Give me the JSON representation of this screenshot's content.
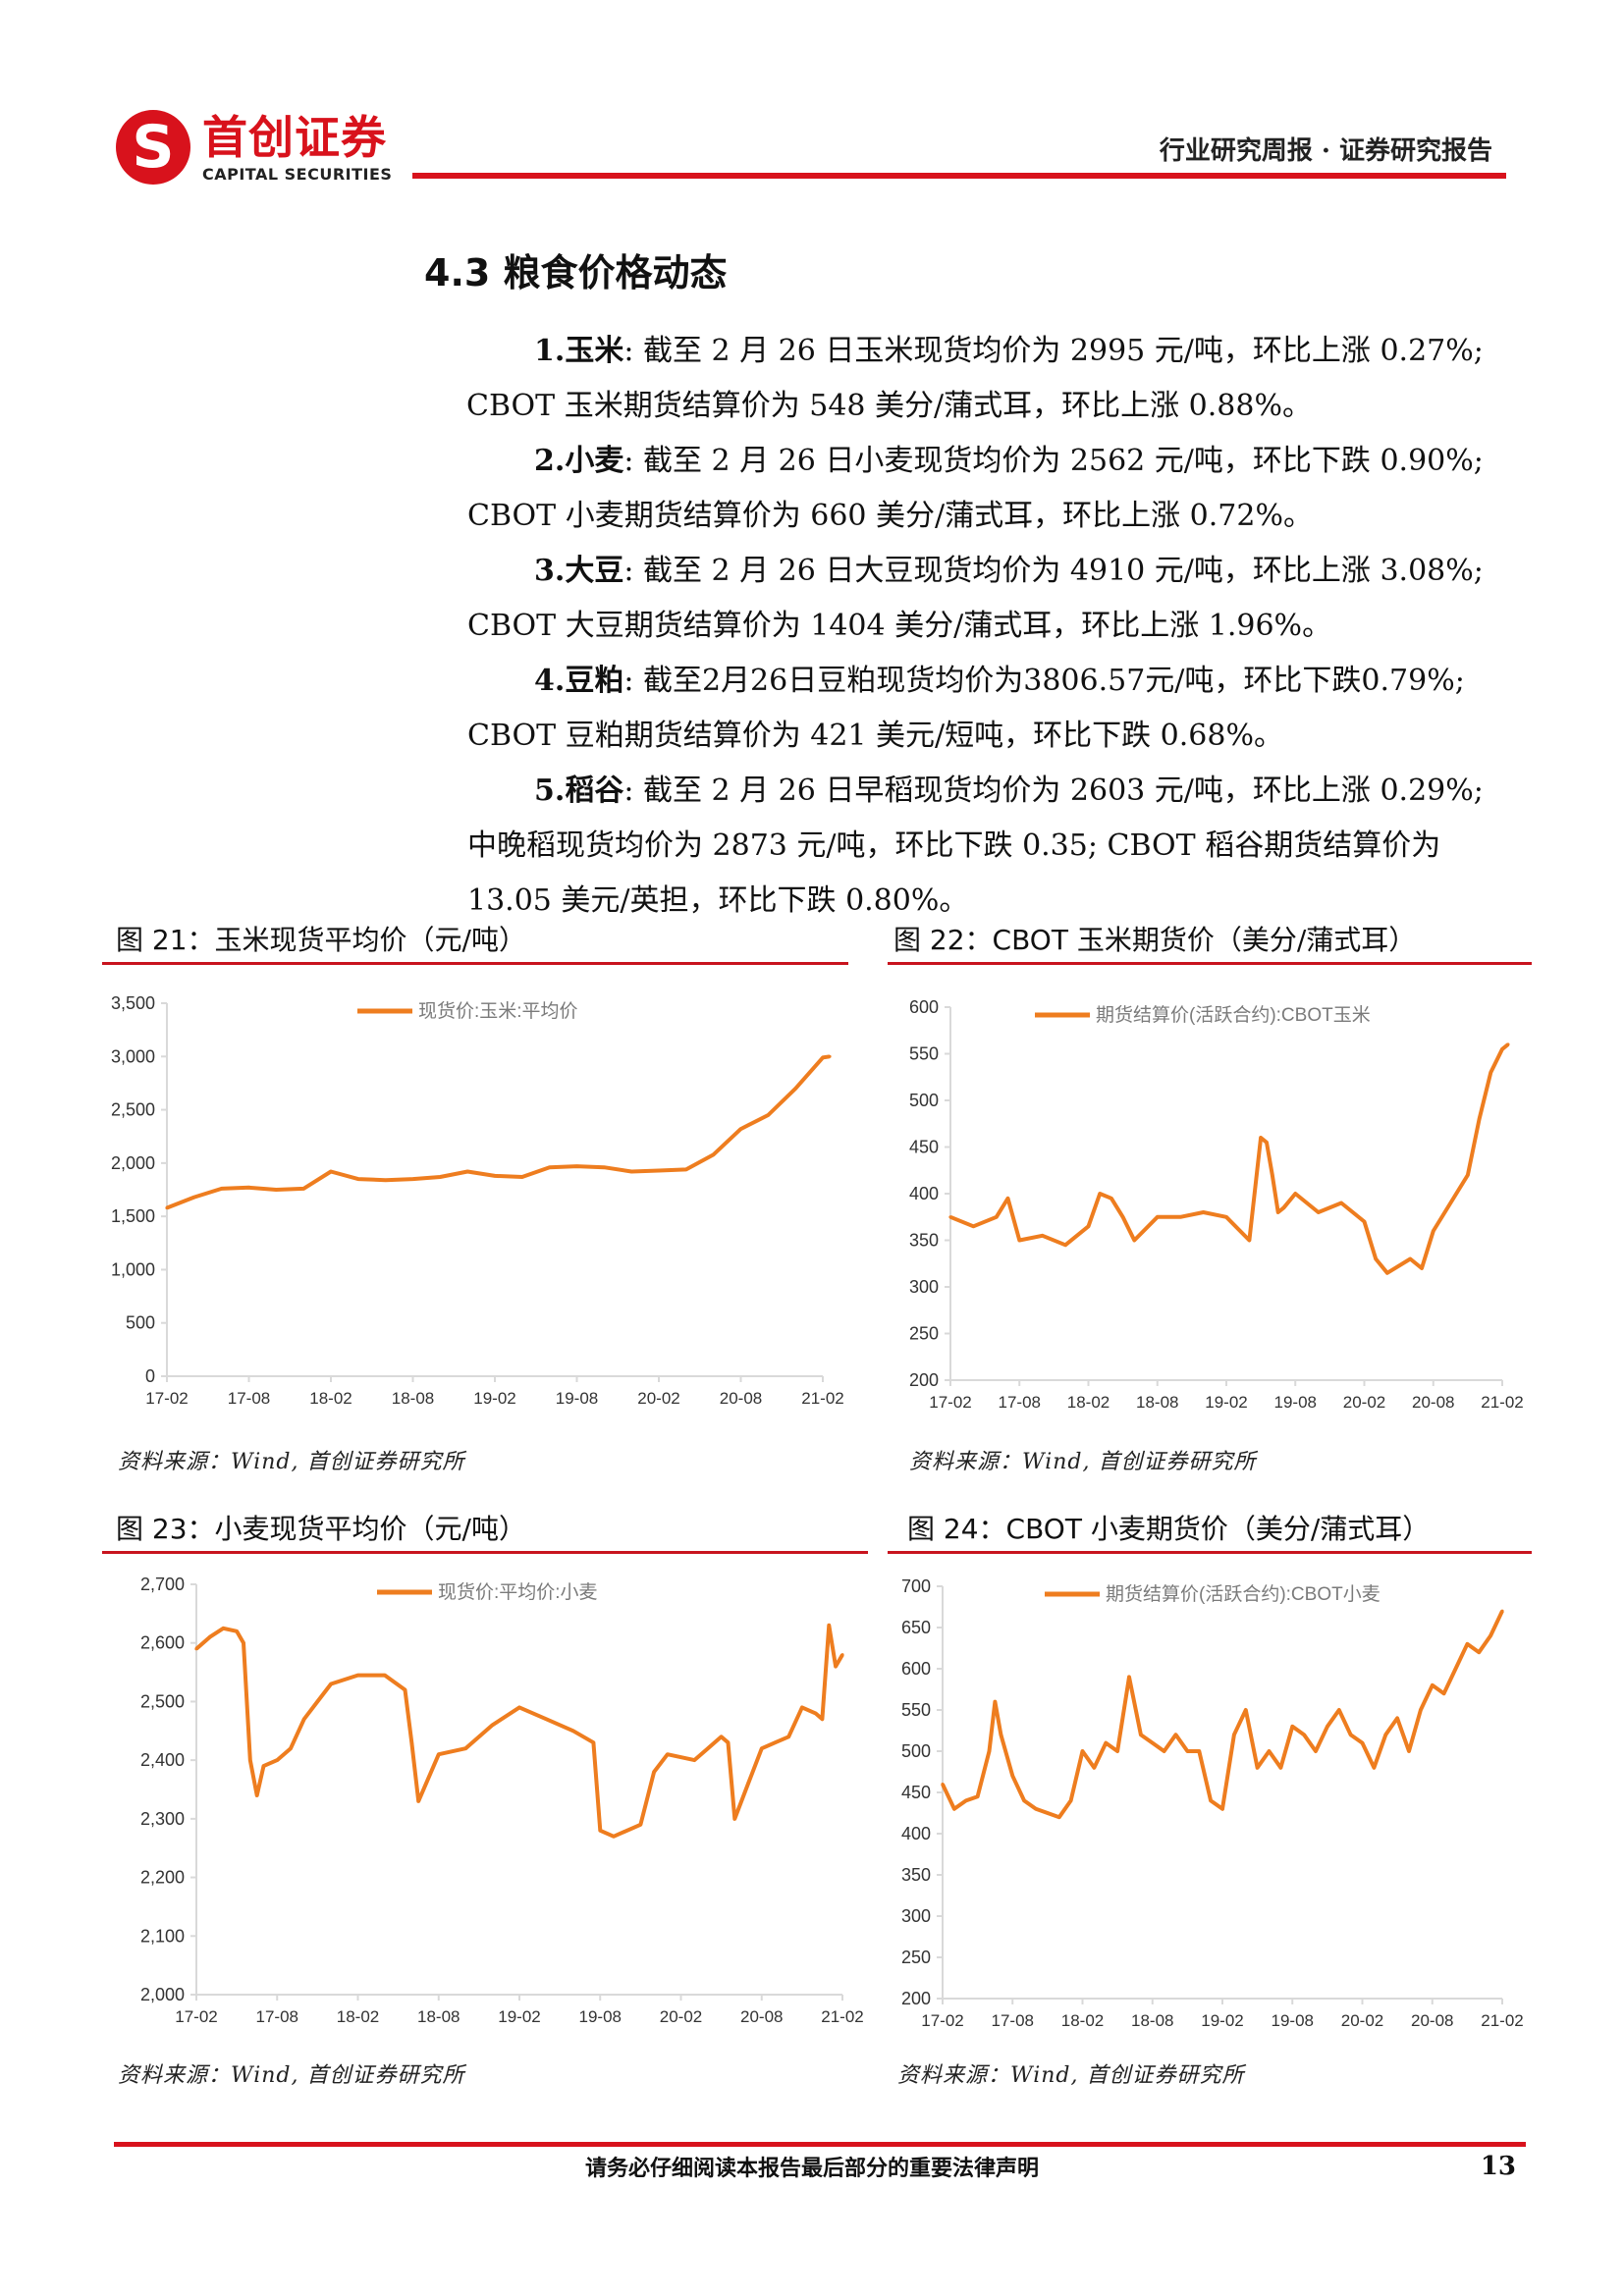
{
  "header": {
    "logo_cn": "首创证券",
    "logo_en": "CAPITAL SECURITIES",
    "title": "行业研究周报 · 证券研究报告"
  },
  "section_title": "4.3 粮食价格动态",
  "paragraphs": [
    {
      "lead": "1.玉米",
      "text": ": 截至 2 月 26 日玉米现货均价为 2995 元/吨，环比上涨 0.27%;"
    },
    {
      "lead": "",
      "text": "CBOT 玉米期货结算价为 548 美分/蒲式耳，环比上涨 0.88%。"
    },
    {
      "lead": "2.小麦",
      "text": ": 截至 2 月 26 日小麦现货均价为 2562 元/吨，环比下跌 0.90%;"
    },
    {
      "lead": "",
      "text": "CBOT 小麦期货结算价为 660 美分/蒲式耳，环比上涨 0.72%。"
    },
    {
      "lead": "3.大豆",
      "text": ": 截至 2 月 26 日大豆现货均价为 4910 元/吨，环比上涨 3.08%;"
    },
    {
      "lead": "",
      "text": "CBOT 大豆期货结算价为 1404 美分/蒲式耳，环比上涨 1.96%。"
    },
    {
      "lead": "4.豆粕",
      "text": ": 截至2月26日豆粕现货均价为3806.57元/吨，环比下跌0.79%;"
    },
    {
      "lead": "",
      "text": "CBOT 豆粕期货结算价为 421 美元/短吨，环比下跌 0.68%。"
    },
    {
      "lead": "5.稻谷",
      "text": ": 截至 2 月 26 日早稻现货均价为 2603 元/吨，环比上涨 0.29%;"
    },
    {
      "lead": "",
      "text": "中晚稻现货均价为 2873 元/吨，环比下跌 0.35; CBOT 稻谷期货结算价为"
    },
    {
      "lead": "",
      "text": "13.05 美元/英担，环比下跌 0.80%。"
    }
  ],
  "source_text": "资料来源：Wind, 首创证券研究所",
  "footer": {
    "disclaimer": "请务必仔细阅读本报告最后部分的重要法律声明",
    "page_number": "13"
  },
  "colors": {
    "accent": "#d8121c",
    "series": "#ee7d1f",
    "axis": "#d9d9d9"
  },
  "chart_data": [
    {
      "type": "line",
      "caption": "图 21：玉米现货平均价（元/吨）",
      "title": "",
      "xlabel": "",
      "ylabel": "",
      "x_ticks": [
        "17-02",
        "17-08",
        "18-02",
        "18-08",
        "19-02",
        "19-08",
        "20-02",
        "20-08",
        "21-02"
      ],
      "ylim": [
        0,
        3500
      ],
      "y_ticks": [
        0,
        500,
        1000,
        1500,
        2000,
        2500,
        3000,
        3500
      ],
      "y_tick_labels": [
        "0",
        "500",
        "1,000",
        "1,500",
        "2,000",
        "2,500",
        "3,000",
        "3,500"
      ],
      "legend_position": "top-center",
      "grid": false,
      "series": [
        {
          "name": "现货价:玉米:平均价",
          "x": [
            0,
            2,
            4,
            6,
            8,
            10,
            12,
            14,
            16,
            18,
            20,
            22,
            24,
            26,
            28,
            30,
            32,
            34,
            36,
            38,
            40,
            42,
            44,
            46,
            48,
            48.5
          ],
          "values": [
            1580,
            1680,
            1760,
            1770,
            1750,
            1760,
            1920,
            1850,
            1840,
            1850,
            1870,
            1920,
            1880,
            1870,
            1960,
            1970,
            1960,
            1920,
            1930,
            1940,
            2080,
            2320,
            2450,
            2700,
            2990,
            3000
          ]
        }
      ]
    },
    {
      "type": "line",
      "caption": "图 22：CBOT 玉米期货价（美分/蒲式耳）",
      "title": "",
      "xlabel": "",
      "ylabel": "",
      "x_ticks": [
        "17-02",
        "17-08",
        "18-02",
        "18-08",
        "19-02",
        "19-08",
        "20-02",
        "20-08",
        "21-02"
      ],
      "ylim": [
        200,
        600
      ],
      "y_ticks": [
        200,
        250,
        300,
        350,
        400,
        450,
        500,
        550,
        600
      ],
      "y_tick_labels": [
        "200",
        "250",
        "300",
        "350",
        "400",
        "450",
        "500",
        "550",
        "600"
      ],
      "legend_position": "top-center",
      "grid": false,
      "series": [
        {
          "name": "期货结算价(活跃合约):CBOT玉米",
          "x": [
            0,
            2,
            4,
            5,
            6,
            8,
            10,
            12,
            13,
            14,
            15,
            16,
            18,
            20,
            22,
            24,
            26,
            27,
            27.5,
            28,
            28.5,
            29,
            30,
            32,
            34,
            36,
            37,
            38,
            40,
            41,
            42,
            43,
            44,
            45,
            46,
            47,
            48,
            48.5
          ],
          "values": [
            375,
            365,
            375,
            395,
            350,
            355,
            345,
            365,
            400,
            395,
            375,
            350,
            375,
            375,
            380,
            375,
            350,
            460,
            455,
            420,
            380,
            385,
            400,
            380,
            390,
            370,
            330,
            315,
            330,
            320,
            360,
            380,
            400,
            420,
            480,
            530,
            555,
            560
          ]
        }
      ]
    },
    {
      "type": "line",
      "caption": "图 23：小麦现货平均价（元/吨）",
      "title": "",
      "xlabel": "",
      "ylabel": "",
      "x_ticks": [
        "17-02",
        "17-08",
        "18-02",
        "18-08",
        "19-02",
        "19-08",
        "20-02",
        "20-08",
        "21-02"
      ],
      "ylim": [
        2000,
        2700
      ],
      "y_ticks": [
        2000,
        2100,
        2200,
        2300,
        2400,
        2500,
        2600,
        2700
      ],
      "y_tick_labels": [
        "2,000",
        "2,100",
        "2,200",
        "2,300",
        "2,400",
        "2,500",
        "2,600",
        "2,700"
      ],
      "legend_position": "top-center",
      "grid": false,
      "series": [
        {
          "name": "现货价:平均价:小麦",
          "x": [
            0,
            1,
            2,
            3,
            3.5,
            4,
            4.5,
            5,
            6,
            7,
            8,
            9,
            10,
            12,
            14,
            15.5,
            16,
            16.5,
            18,
            20,
            22,
            24,
            26,
            28,
            29.5,
            30,
            31,
            33,
            34,
            35,
            37,
            38,
            39,
            39.5,
            40,
            41,
            42,
            43,
            44,
            45,
            46,
            46.5,
            47,
            47.5,
            48
          ],
          "values": [
            2590,
            2610,
            2625,
            2620,
            2600,
            2400,
            2340,
            2390,
            2400,
            2420,
            2470,
            2500,
            2530,
            2545,
            2545,
            2520,
            2430,
            2330,
            2410,
            2420,
            2460,
            2490,
            2470,
            2450,
            2430,
            2280,
            2270,
            2290,
            2380,
            2410,
            2400,
            2420,
            2440,
            2430,
            2300,
            2360,
            2420,
            2430,
            2440,
            2490,
            2480,
            2470,
            2630,
            2560,
            2580
          ]
        }
      ]
    },
    {
      "type": "line",
      "caption": "图 24：CBOT 小麦期货价（美分/蒲式耳）",
      "title": "",
      "xlabel": "",
      "ylabel": "",
      "x_ticks": [
        "17-02",
        "17-08",
        "18-02",
        "18-08",
        "19-02",
        "19-08",
        "20-02",
        "20-08",
        "21-02"
      ],
      "ylim": [
        200,
        700
      ],
      "y_ticks": [
        200,
        250,
        300,
        350,
        400,
        450,
        500,
        550,
        600,
        650,
        700
      ],
      "y_tick_labels": [
        "200",
        "250",
        "300",
        "350",
        "400",
        "450",
        "500",
        "550",
        "600",
        "650",
        "700"
      ],
      "legend_position": "top-center",
      "grid": false,
      "series": [
        {
          "name": "期货结算价(活跃合约):CBOT小麦",
          "x": [
            0,
            1,
            2,
            3,
            4,
            4.5,
            5,
            6,
            7,
            8,
            9,
            10,
            11,
            12,
            13,
            14,
            15,
            16,
            17,
            18,
            19,
            20,
            21,
            22,
            23,
            24,
            25,
            26,
            27,
            28,
            29,
            30,
            31,
            32,
            33,
            34,
            35,
            36,
            37,
            38,
            39,
            40,
            41,
            42,
            43,
            44,
            45,
            46,
            47,
            48
          ],
          "values": [
            460,
            430,
            440,
            445,
            500,
            560,
            520,
            470,
            440,
            430,
            425,
            420,
            440,
            500,
            480,
            510,
            500,
            590,
            520,
            510,
            500,
            520,
            500,
            500,
            440,
            430,
            520,
            550,
            480,
            500,
            480,
            530,
            520,
            500,
            530,
            550,
            520,
            510,
            480,
            520,
            540,
            500,
            550,
            580,
            570,
            600,
            630,
            620,
            640,
            670
          ]
        }
      ]
    }
  ]
}
